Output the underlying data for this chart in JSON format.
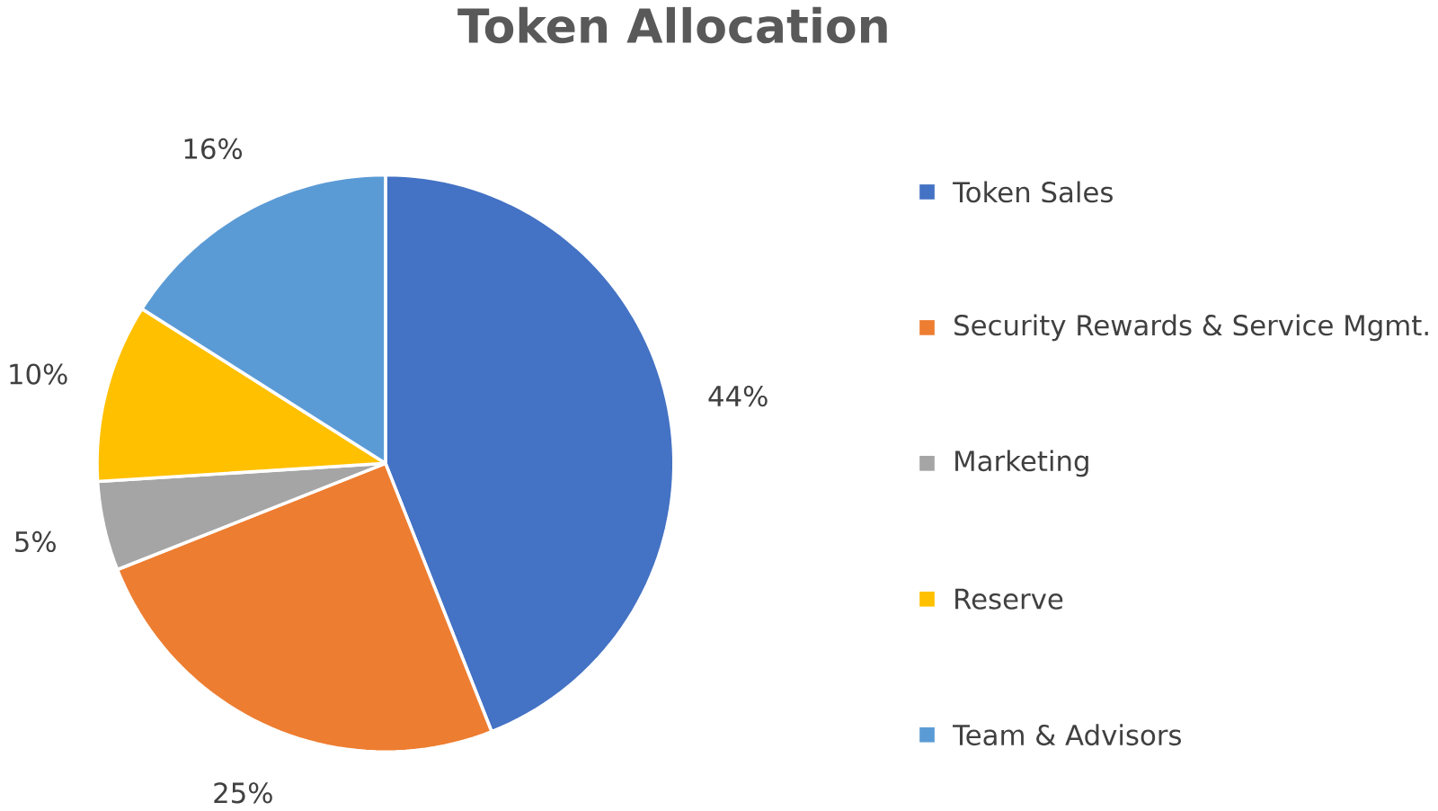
{
  "chart_data": {
    "type": "pie",
    "title": "Token Allocation",
    "categories": [
      "Token Sales",
      "Security Rewards & Service Mgmt.",
      "Marketing",
      "Reserve",
      "Team & Advisors"
    ],
    "values": [
      44,
      25,
      5,
      10,
      16
    ],
    "colors": [
      "#4472c4",
      "#ed7d31",
      "#a5a5a5",
      "#ffc000",
      "#5b9bd5"
    ],
    "value_labels": [
      "44%",
      "25%",
      "5%",
      "10%",
      "16%"
    ],
    "legend": "right"
  }
}
